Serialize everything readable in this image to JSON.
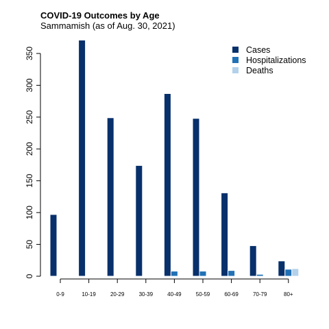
{
  "chart_data": {
    "type": "bar",
    "title": "COVID-19 Outcomes by Age",
    "subtitle": "Sammamish (as of Aug. 30, 2021)",
    "xlabel": "",
    "ylabel": "",
    "categories": [
      "0-9",
      "10-19",
      "20-29",
      "30-39",
      "40-49",
      "50-59",
      "60-69",
      "70-79",
      "80+"
    ],
    "series": [
      {
        "name": "Cases",
        "color": "#08306b",
        "values": [
          97,
          371,
          249,
          174,
          287,
          248,
          131,
          48,
          24
        ]
      },
      {
        "name": "Hospitalizations",
        "color": "#2171b5",
        "values": [
          0,
          0,
          0,
          0,
          8,
          8,
          9,
          3,
          11
        ]
      },
      {
        "name": "Deaths",
        "color": "#b3d1ea",
        "values": [
          0,
          0,
          0,
          0,
          0,
          0,
          0,
          0,
          12
        ]
      }
    ],
    "ylim": [
      0,
      370
    ],
    "yticks": [
      "0",
      "50",
      "100",
      "150",
      "200",
      "250",
      "300",
      "350"
    ],
    "grid": false,
    "legend": "top-right"
  }
}
